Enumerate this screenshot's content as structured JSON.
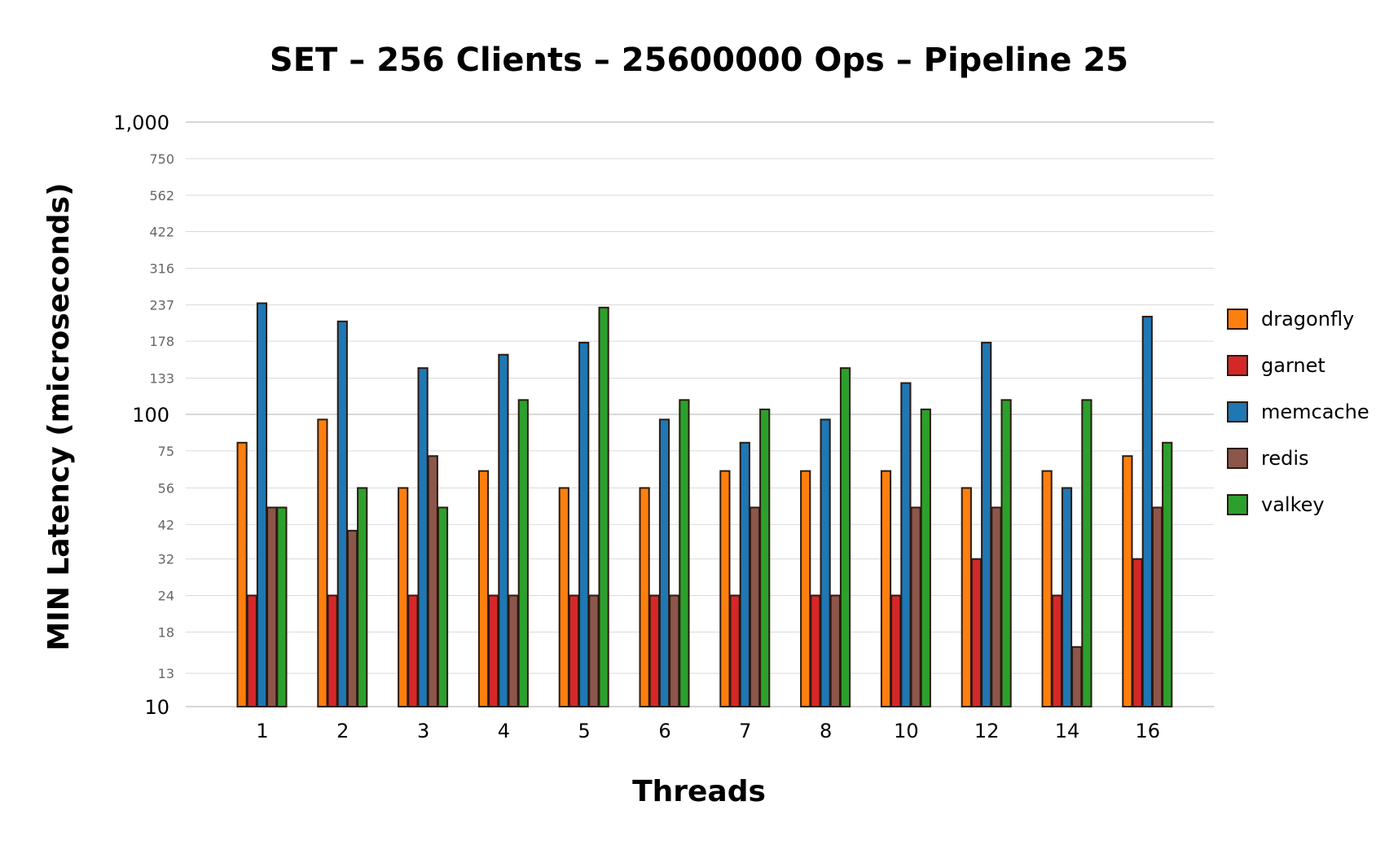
{
  "chart_data": {
    "type": "bar",
    "title": "SET – 256 Clients – 25600000 Ops – Pipeline 25",
    "xlabel": "Threads",
    "ylabel": "MIN Latency (microseconds)",
    "y_scale": "log",
    "ylim": [
      10,
      1000
    ],
    "y_ticks": [
      {
        "value": 10,
        "label": "10",
        "major": true
      },
      {
        "value": 13,
        "label": "13",
        "major": false
      },
      {
        "value": 18,
        "label": "18",
        "major": false
      },
      {
        "value": 24,
        "label": "24",
        "major": false
      },
      {
        "value": 32,
        "label": "32",
        "major": false
      },
      {
        "value": 42,
        "label": "42",
        "major": false
      },
      {
        "value": 56,
        "label": "56",
        "major": false
      },
      {
        "value": 75,
        "label": "75",
        "major": false
      },
      {
        "value": 100,
        "label": "100",
        "major": true
      },
      {
        "value": 133,
        "label": "133",
        "major": false
      },
      {
        "value": 178,
        "label": "178",
        "major": false
      },
      {
        "value": 237,
        "label": "237",
        "major": false
      },
      {
        "value": 316,
        "label": "316",
        "major": false
      },
      {
        "value": 422,
        "label": "422",
        "major": false
      },
      {
        "value": 562,
        "label": "562",
        "major": false
      },
      {
        "value": 750,
        "label": "750",
        "major": false
      },
      {
        "value": 1000,
        "label": "1,000",
        "major": true
      }
    ],
    "categories": [
      "1",
      "2",
      "3",
      "4",
      "5",
      "6",
      "7",
      "8",
      "10",
      "12",
      "14",
      "16"
    ],
    "legend_position": "right",
    "grid": true,
    "series": [
      {
        "name": "dragonfly",
        "color": "#ff7f0e",
        "values": [
          80,
          96,
          56,
          64,
          56,
          56,
          64,
          64,
          64,
          56,
          64,
          72
        ]
      },
      {
        "name": "garnet",
        "color": "#d62728",
        "values": [
          24,
          24,
          24,
          24,
          24,
          24,
          24,
          24,
          24,
          32,
          24,
          32
        ]
      },
      {
        "name": "memcache",
        "color": "#1f77b4",
        "values": [
          240,
          208,
          144,
          160,
          176,
          96,
          80,
          96,
          128,
          176,
          56,
          216
        ]
      },
      {
        "name": "redis",
        "color": "#8c564b",
        "values": [
          48,
          40,
          72,
          24,
          24,
          24,
          48,
          24,
          48,
          48,
          16,
          48
        ]
      },
      {
        "name": "valkey",
        "color": "#2ca02c",
        "values": [
          48,
          56,
          48,
          112,
          232,
          112,
          104,
          144,
          104,
          112,
          112,
          80
        ]
      }
    ]
  }
}
